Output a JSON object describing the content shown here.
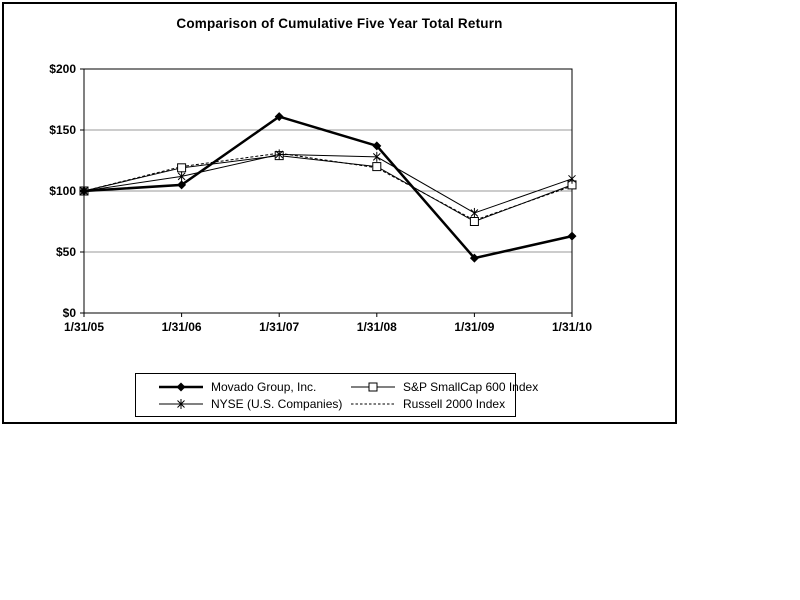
{
  "chart_data": {
    "type": "line",
    "title": "Comparison of Cumulative Five Year Total Return",
    "categories": [
      "1/31/05",
      "1/31/06",
      "1/31/07",
      "1/31/08",
      "1/31/09",
      "1/31/10"
    ],
    "xlabel": "",
    "ylabel": "",
    "ylim": [
      0,
      200
    ],
    "y_ticks": [
      {
        "label": "$0",
        "value": 0
      },
      {
        "label": "$50",
        "value": 50
      },
      {
        "label": "$100",
        "value": 100
      },
      {
        "label": "$150",
        "value": 150
      },
      {
        "label": "$200",
        "value": 200
      }
    ],
    "grid": true,
    "legend_position": "bottom",
    "series": [
      {
        "name": "Movado Group, Inc.",
        "values": [
          100,
          105,
          161,
          137,
          45,
          63
        ],
        "marker": "diamond",
        "line": "solid",
        "width": 2.5
      },
      {
        "name": "S&P SmallCap 600 Index",
        "values": [
          100,
          119,
          129,
          120,
          75,
          105
        ],
        "marker": "square",
        "line": "solid",
        "width": 1
      },
      {
        "name": "NYSE (U.S. Companies)",
        "values": [
          100,
          112,
          130,
          128,
          82,
          110
        ],
        "marker": "asterisk",
        "line": "solid",
        "width": 1
      },
      {
        "name": "Russell 2000 Index",
        "values": [
          100,
          120,
          131,
          119,
          76,
          104
        ],
        "marker": "none",
        "line": "dashed",
        "width": 1
      }
    ],
    "colors": {
      "line": "#000000",
      "gridline": "#9a9a9a",
      "background": "#ffffff"
    }
  }
}
